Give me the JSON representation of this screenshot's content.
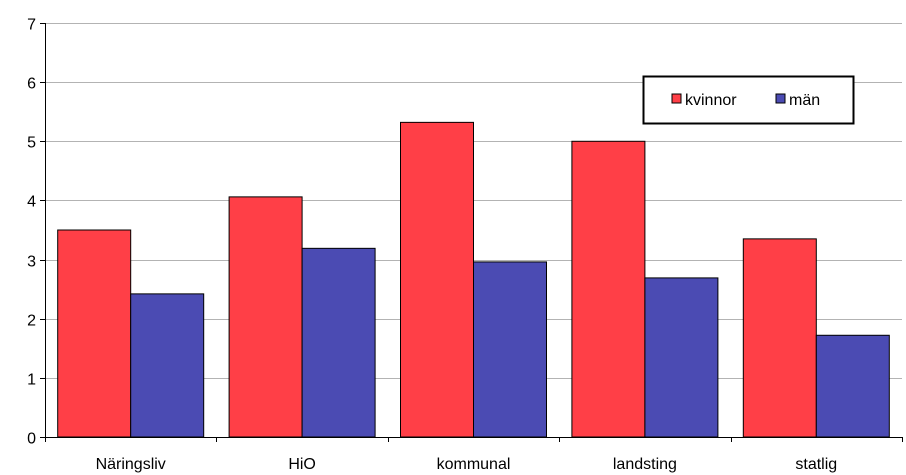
{
  "chart_data": {
    "type": "bar",
    "categories": [
      "Näringsliv",
      "HiO",
      "kommunal",
      "landsting",
      "statlig"
    ],
    "series": [
      {
        "name": "kvinnor",
        "values": [
          3.5,
          4.06,
          5.32,
          5.0,
          3.35
        ],
        "color": "#ff3f47"
      },
      {
        "name": "män",
        "values": [
          2.42,
          3.19,
          2.96,
          2.69,
          1.72
        ],
        "color": "#4b4bb3"
      }
    ],
    "ylim": [
      0,
      7
    ],
    "yticks": [
      0,
      1,
      2,
      3,
      4,
      5,
      6,
      7
    ],
    "grid": true,
    "legend_position": "top-right",
    "title": "",
    "xlabel": "",
    "ylabel": ""
  }
}
